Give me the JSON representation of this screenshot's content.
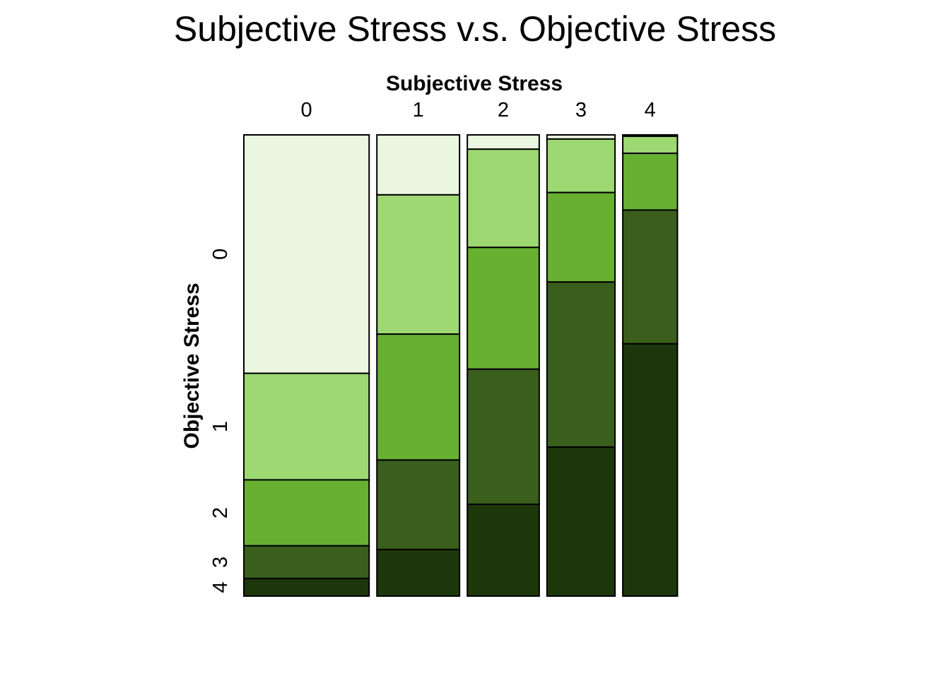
{
  "chart_data": {
    "type": "mosaic",
    "title": "Subjective Stress v.s. Objective Stress",
    "xlabel": "Subjective Stress",
    "ylabel": "Objective Stress",
    "x_categories": [
      "0",
      "1",
      "2",
      "3",
      "4"
    ],
    "y_categories": [
      "0",
      "1",
      "2",
      "3",
      "4"
    ],
    "column_widths": [
      0.291,
      0.192,
      0.167,
      0.158,
      0.127
    ],
    "column_proportions": [
      [
        0.517,
        0.231,
        0.143,
        0.071,
        0.038
      ],
      [
        0.13,
        0.302,
        0.273,
        0.194,
        0.101
      ],
      [
        0.031,
        0.213,
        0.264,
        0.293,
        0.199
      ],
      [
        0.009,
        0.116,
        0.194,
        0.358,
        0.323
      ],
      [
        0.003,
        0.037,
        0.123,
        0.29,
        0.547
      ]
    ],
    "colors": [
      "#ebf6e1",
      "#9dd873",
      "#67b032",
      "#3a5e1c",
      "#1d370b"
    ],
    "grid": false,
    "legend": "none"
  }
}
